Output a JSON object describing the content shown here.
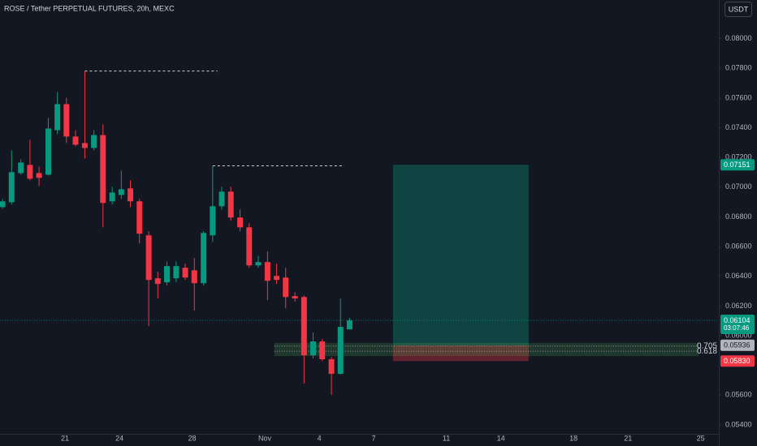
{
  "chart_data": {
    "type": "candlestick",
    "title": "ROSE / Tether PERPETUAL FUTURES, 20h, MEXC",
    "currency": "USDT",
    "up_color": "#089981",
    "down_color": "#f23645",
    "x": [
      17.56,
      18.06,
      18.57,
      19.07,
      19.57,
      20.08,
      20.58,
      21.08,
      21.58,
      22.09,
      22.59,
      23.09,
      23.6,
      24.1,
      24.6,
      25.1,
      25.61,
      26.11,
      26.61,
      27.12,
      27.62,
      28.12,
      28.63,
      29.13,
      29.63,
      30.13,
      30.64,
      31.14,
      31.64,
      32.15,
      32.65,
      33.15,
      33.66,
      34.16,
      34.66,
      35.16,
      35.67,
      36.17,
      36.67
    ],
    "open": [
      0.06866,
      0.06899,
      0.07095,
      0.0715,
      0.07095,
      0.07084,
      0.07384,
      0.07559,
      0.07341,
      0.07297,
      0.07264,
      0.07351,
      0.06905,
      0.06948,
      0.06992,
      0.06905,
      0.06676,
      0.06387,
      0.0636,
      0.06387,
      0.06458,
      0.06441,
      0.06354,
      0.06676,
      0.06872,
      0.0697,
      0.06796,
      0.0673,
      0.06474,
      0.06496,
      0.06403,
      0.06392,
      0.06267,
      0.06261,
      0.05869,
      0.05962,
      0.05842,
      0.05744,
      0.06043
    ],
    "high": [
      0.06921,
      0.07248,
      0.07188,
      0.07319,
      0.07139,
      0.07466,
      0.0764,
      0.07602,
      0.07384,
      0.07782,
      0.07384,
      0.07422,
      0.07003,
      0.07112,
      0.07046,
      0.06921,
      0.06703,
      0.0643,
      0.06501,
      0.06501,
      0.06485,
      0.06523,
      0.06703,
      0.07144,
      0.07003,
      0.07003,
      0.0685,
      0.06757,
      0.06539,
      0.06567,
      0.06485,
      0.06458,
      0.06294,
      0.06272,
      0.06022,
      0.05978,
      0.05858,
      0.06251,
      0.0612
    ],
    "low": [
      0.06855,
      0.06883,
      0.07084,
      0.07046,
      0.07008,
      0.07079,
      0.07357,
      0.07297,
      0.07275,
      0.07193,
      0.07248,
      0.0673,
      0.06883,
      0.06921,
      0.06866,
      0.06621,
      0.06065,
      0.06251,
      0.06338,
      0.0636,
      0.06376,
      0.06169,
      0.06338,
      0.06632,
      0.0685,
      0.06774,
      0.06703,
      0.06458,
      0.06458,
      0.0624,
      0.06349,
      0.06185,
      0.06229,
      0.05678,
      0.05847,
      0.05831,
      0.05602,
      0.05738,
      0.06049
    ],
    "close": [
      0.06905,
      0.07101,
      0.07166,
      0.07057,
      0.07063,
      0.07395,
      0.07559,
      0.07341,
      0.07286,
      0.07264,
      0.07351,
      0.06894,
      0.06964,
      0.06986,
      0.06905,
      0.06687,
      0.06376,
      0.06349,
      0.06469,
      0.06469,
      0.06392,
      0.06354,
      0.06692,
      0.06872,
      0.0697,
      0.06796,
      0.0673,
      0.06474,
      0.06496,
      0.0637,
      0.06376,
      0.06261,
      0.06251,
      0.05869,
      0.05962,
      0.05842,
      0.05744,
      0.0606,
      0.06104
    ],
    "countdown": "03:07:46",
    "xlim": [
      17.42,
      57
    ],
    "ylim": [
      0.0534,
      0.0826
    ],
    "xticks": [
      21,
      24,
      28,
      {
        "value": 32,
        "label": "Nov"
      },
      {
        "value": 35,
        "label": "4"
      },
      {
        "value": 38,
        "label": "7"
      },
      {
        "value": 42,
        "label": "11"
      },
      {
        "value": 45,
        "label": "14"
      },
      {
        "value": 49,
        "label": "18"
      },
      {
        "value": 52,
        "label": "21"
      },
      {
        "value": 56,
        "label": "25"
      }
    ],
    "yticks": [
      {
        "value": 0.054,
        "label": "0.05400"
      },
      {
        "value": 0.056,
        "label": "0.05600"
      },
      {
        "value": 0.06,
        "label": "0.06000"
      },
      {
        "value": 0.062,
        "label": "0.06200"
      },
      {
        "value": 0.064,
        "label": "0.06400"
      },
      {
        "value": 0.066,
        "label": "0.06600"
      },
      {
        "value": 0.068,
        "label": "0.06800"
      },
      {
        "value": 0.07,
        "label": "0.07000"
      },
      {
        "value": 0.072,
        "label": "0.07200"
      },
      {
        "value": 0.074,
        "label": "0.07400"
      },
      {
        "value": 0.076,
        "label": "0.07600"
      },
      {
        "value": 0.078,
        "label": "0.07800"
      },
      {
        "value": 0.08,
        "label": "0.08000"
      }
    ],
    "hlines": [
      {
        "price": 0.07782,
        "x": [
          22.09,
          29.4
        ]
      },
      {
        "price": 0.07144,
        "x": [
          29.13,
          36.38
        ]
      }
    ],
    "fib_levels": {
      "x": [
        32.53,
        55.87
      ],
      "levels": [
        {
          "label": "0.705",
          "value": 0.0593
        },
        {
          "label": "0.618",
          "value": 0.05896
        }
      ]
    },
    "position": {
      "x": [
        39.06,
        46.53
      ],
      "target": {
        "value": 0.07151,
        "label": "0.07151"
      },
      "entry": {
        "value": 0.05936,
        "label": "0.05936"
      },
      "stop": {
        "value": 0.0583,
        "label": "0.05830"
      }
    }
  }
}
